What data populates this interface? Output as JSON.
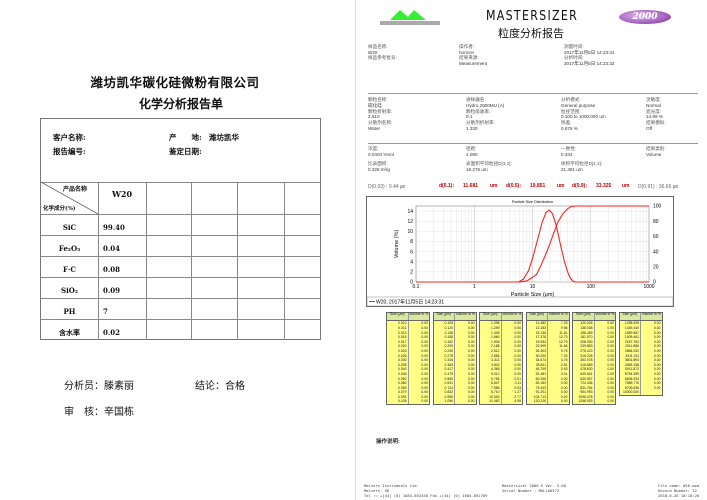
{
  "left": {
    "company": "潍坊凯华碳化硅微粉有限公司",
    "title": "化学分析报告单",
    "customer_label": "客户名称:",
    "origin_label": "产　　地:",
    "origin_value": "潍坊凯华",
    "report_no_label": "报告编号:",
    "date_label": "鉴定日期:",
    "header_product": "产品名称",
    "header_component": "化学成分(%)",
    "product": "W20",
    "rows": [
      {
        "name": "SiC",
        "value": "99.40"
      },
      {
        "name": "Fe₂O₃",
        "value": "0.04"
      },
      {
        "name": "F·C",
        "value": "0.08"
      },
      {
        "name": "SiO₂",
        "value": "0.09"
      },
      {
        "name": "PH",
        "value": "7"
      },
      {
        "name": "含水率",
        "value": "0.02"
      }
    ],
    "analyst": "分析员：滕素丽",
    "conclusion": "结论：合格",
    "reviewer": "审　核：辛国栋"
  },
  "right": {
    "logo_text": "MALVERN",
    "brand": "MASTERSIZER",
    "brand_badge": "2000",
    "title": "粒度分析报告",
    "header": [
      {
        "label": "样品名称:",
        "value": "W20"
      },
      {
        "label": "样品参考批号:",
        "value": ""
      },
      {
        "label": "操作者:",
        "value": "horizon"
      },
      {
        "label": "结果来源:",
        "value": "Measurement"
      },
      {
        "label": "测量时间:",
        "value": "2017年11月5日 14:23:31"
      },
      {
        "label": "分析时间:",
        "value": "2017年11月5日 14:23:32"
      }
    ],
    "params": [
      {
        "label": "颗粒名称:",
        "value": "碳化硅"
      },
      {
        "label": "颗粒折射率:",
        "value": "2.610"
      },
      {
        "label": "分散剂名称:",
        "value": "Water"
      },
      {
        "label": "进样器名:",
        "value": "Hydro 2000MU (A)"
      },
      {
        "label": "颗粒吸收率:",
        "value": "0.1"
      },
      {
        "label": "分散剂折射率:",
        "value": "1.330"
      },
      {
        "label": "分析模式:",
        "value": "General purpose"
      },
      {
        "label": "粒径范围:",
        "value": "0.100   to   1000.000  um"
      },
      {
        "label": "残差:",
        "value": "0.676       %"
      },
      {
        "label": "灵敏度:",
        "value": "Normal"
      },
      {
        "label": "遮光度:",
        "value": "14.99     %"
      },
      {
        "label": "结果模拟:",
        "value": "Off"
      }
    ],
    "results": [
      {
        "label": "浓度:",
        "value": "0.0404     %Vol"
      },
      {
        "label": "比表面积:",
        "value": "0.328      m²/g"
      },
      {
        "label": "径距:",
        "value": "1.090"
      },
      {
        "label": "表面积平均粒径D[3,2]:",
        "value": "18.276     um"
      },
      {
        "label": "一致性:",
        "value": "0.334"
      },
      {
        "label": "体积平均粒径D[4,3]:",
        "value": "21.361     um"
      },
      {
        "label": "结果类别:",
        "value": "Volume"
      }
    ],
    "dvalues": {
      "d003": "D(0.03) : 9.44 ㎛",
      "d01_label": "d(0.1):",
      "d01": "11.681",
      "d05_label": "d(0.5):",
      "d05": "19.851",
      "d09_label": "d(0.9):",
      "d09": "33.325",
      "unit": "um",
      "d091": "D(0.91) : 36.66 ㎛"
    },
    "notes_label": "操作说明:",
    "footer": {
      "left": "Malvern Instruments Ltd.\nMalvern, UK\nTel := +[44] (0) 1684-892456 Fax +[44] (0) 1684-892789",
      "center": "Mastersizer 2000 E Ver. 5.60\nSerial Number : MAL100572",
      "right": "File name: W20.mea\nRecord Number: 12\n2018-6-26 10:10:26"
    },
    "table_header": [
      "Size (μm)",
      "Volume In %"
    ],
    "table": [
      [
        [
          "0.010",
          "0.00"
        ],
        [
          "0.011",
          "0.00"
        ],
        [
          "0.013",
          "0.00"
        ],
        [
          "0.015",
          "0.00"
        ],
        [
          "0.017",
          "0.00"
        ],
        [
          "0.020",
          "0.00"
        ],
        [
          "0.023",
          "0.00"
        ],
        [
          "0.026",
          "0.00"
        ],
        [
          "0.030",
          "0.00"
        ],
        [
          "0.035",
          "0.00"
        ],
        [
          "0.040",
          "0.00"
        ],
        [
          "0.046",
          "0.00"
        ],
        [
          "0.052",
          "0.00"
        ],
        [
          "0.060",
          "0.00"
        ],
        [
          "0.069",
          "0.00"
        ],
        [
          "0.079",
          "0.00"
        ],
        [
          "0.091",
          "0.00"
        ],
        [
          "0.105",
          "0.00"
        ]
      ],
      [
        [
          "0.105",
          "0.00"
        ],
        [
          "0.120",
          "0.00"
        ],
        [
          "0.138",
          "0.00"
        ],
        [
          "0.158",
          "0.00"
        ],
        [
          "0.182",
          "0.00"
        ],
        [
          "0.209",
          "0.00"
        ],
        [
          "0.240",
          "0.00"
        ],
        [
          "0.275",
          "0.00"
        ],
        [
          "0.316",
          "0.00"
        ],
        [
          "0.363",
          "0.00"
        ],
        [
          "0.417",
          "0.00"
        ],
        [
          "0.479",
          "0.00"
        ],
        [
          "0.550",
          "0.00"
        ],
        [
          "0.631",
          "0.00"
        ],
        [
          "0.724",
          "0.00"
        ],
        [
          "0.832",
          "0.00"
        ],
        [
          "0.955",
          "0.00"
        ],
        [
          "1.096",
          "0.00"
        ]
      ],
      [
        [
          "1.096",
          "0.00"
        ],
        [
          "1.259",
          "0.00"
        ],
        [
          "1.445",
          "0.00"
        ],
        [
          "1.660",
          "0.00"
        ],
        [
          "1.905",
          "0.00"
        ],
        [
          "2.188",
          "0.00"
        ],
        [
          "2.512",
          "0.00"
        ],
        [
          "2.884",
          "0.00"
        ],
        [
          "3.311",
          "0.00"
        ],
        [
          "3.802",
          "0.00"
        ],
        [
          "4.365",
          "0.00"
        ],
        [
          "5.012",
          "0.00"
        ],
        [
          "5.754",
          "0.01"
        ],
        [
          "6.607",
          "0.11"
        ],
        [
          "7.586",
          "0.53"
        ],
        [
          "8.710",
          "1.27"
        ],
        [
          "10.000",
          "2.77"
        ],
        [
          "11.482",
          "4.98"
        ]
      ],
      [
        [
          "11.482",
          "7.25"
        ],
        [
          "13.183",
          "9.66"
        ],
        [
          "15.136",
          "11.61"
        ],
        [
          "17.378",
          "12.73"
        ],
        [
          "19.953",
          "12.75"
        ],
        [
          "22.909",
          "11.66"
        ],
        [
          "26.303",
          "9.75"
        ],
        [
          "30.200",
          "7.25"
        ],
        [
          "34.674",
          "4.75"
        ],
        [
          "39.811",
          "2.61"
        ],
        [
          "45.709",
          "0.93"
        ],
        [
          "52.481",
          "0.01"
        ],
        [
          "60.256",
          "0.00"
        ],
        [
          "69.183",
          "0.00"
        ],
        [
          "79.433",
          "0.00"
        ],
        [
          "91.201",
          "0.00"
        ],
        [
          "104.713",
          "0.00"
        ],
        [
          "120.226",
          "0.00"
        ]
      ],
      [
        [
          "120.226",
          "0.00"
        ],
        [
          "138.038",
          "0.00"
        ],
        [
          "158.489",
          "0.00"
        ],
        [
          "181.970",
          "0.00"
        ],
        [
          "208.930",
          "0.00"
        ],
        [
          "239.883",
          "0.00"
        ],
        [
          "275.423",
          "0.00"
        ],
        [
          "316.228",
          "0.00"
        ],
        [
          "363.078",
          "0.00"
        ],
        [
          "416.869",
          "0.00"
        ],
        [
          "478.630",
          "0.00"
        ],
        [
          "549.541",
          "0.00"
        ],
        [
          "630.957",
          "0.00"
        ],
        [
          "724.436",
          "0.00"
        ],
        [
          "831.764",
          "0.00"
        ],
        [
          "954.993",
          "0.00"
        ],
        [
          "1096.478",
          "0.00"
        ],
        [
          "1258.925",
          "0.00"
        ]
      ],
      [
        [
          "1258.925",
          "0.00"
        ],
        [
          "1445.440",
          "0.00"
        ],
        [
          "1659.587",
          "0.00"
        ],
        [
          "1905.461",
          "0.00"
        ],
        [
          "2187.762",
          "0.00"
        ],
        [
          "2511.886",
          "0.00"
        ],
        [
          "2884.032",
          "0.00"
        ],
        [
          "3311.311",
          "0.00"
        ],
        [
          "3801.894",
          "0.00"
        ],
        [
          "4365.158",
          "0.00"
        ],
        [
          "5011.872",
          "0.00"
        ],
        [
          "5754.399",
          "0.00"
        ],
        [
          "6606.934",
          "0.00"
        ],
        [
          "7585.776",
          "0.00"
        ],
        [
          "8709.636",
          "0.00"
        ],
        [
          "10000.000",
          ""
        ]
      ]
    ]
  },
  "chart_data": {
    "type": "line",
    "title": "Particle Size Distribution",
    "xlabel": "Particle Size (μm)",
    "ylabel": "Volume (%)",
    "xscale": "log",
    "xlim": [
      0.1,
      1000
    ],
    "ylim": [
      0,
      15
    ],
    "y2lim": [
      0,
      100
    ],
    "xticks": [
      "0.1",
      "1",
      "10",
      "100",
      "1000"
    ],
    "yticks": [
      "0",
      "2",
      "4",
      "6",
      "8",
      "10",
      "12",
      "14"
    ],
    "y2ticks": [
      "0",
      "20",
      "40",
      "60",
      "80",
      "100"
    ],
    "grid": true,
    "legend": "W20, 2017年11月5日 14:23:31",
    "legend_position": "bottom",
    "color": "#ff2020",
    "series": [
      {
        "axis": "left",
        "points": [
          [
            0.1,
            0
          ],
          [
            5.8,
            0
          ],
          [
            7,
            0.6
          ],
          [
            8.5,
            2.2
          ],
          [
            10,
            4.6
          ],
          [
            12,
            8
          ],
          [
            14.5,
            11.6
          ],
          [
            17,
            13.7
          ],
          [
            19.5,
            14.2
          ],
          [
            22,
            13.5
          ],
          [
            25.5,
            11.2
          ],
          [
            30,
            7.5
          ],
          [
            35,
            4.2
          ],
          [
            40,
            2
          ],
          [
            45,
            0.7
          ],
          [
            50,
            0.1
          ],
          [
            55,
            0
          ],
          [
            1000,
            0
          ]
        ]
      },
      {
        "axis": "right",
        "points": [
          [
            0.1,
            0
          ],
          [
            5.8,
            0
          ],
          [
            8,
            1.5
          ],
          [
            10,
            6
          ],
          [
            11.7,
            10
          ],
          [
            14,
            22
          ],
          [
            17,
            37
          ],
          [
            19.85,
            50
          ],
          [
            23,
            64
          ],
          [
            27,
            78
          ],
          [
            33.3,
            90
          ],
          [
            40,
            96.5
          ],
          [
            47,
            99.5
          ],
          [
            55,
            100
          ],
          [
            1000,
            100
          ]
        ]
      }
    ]
  }
}
